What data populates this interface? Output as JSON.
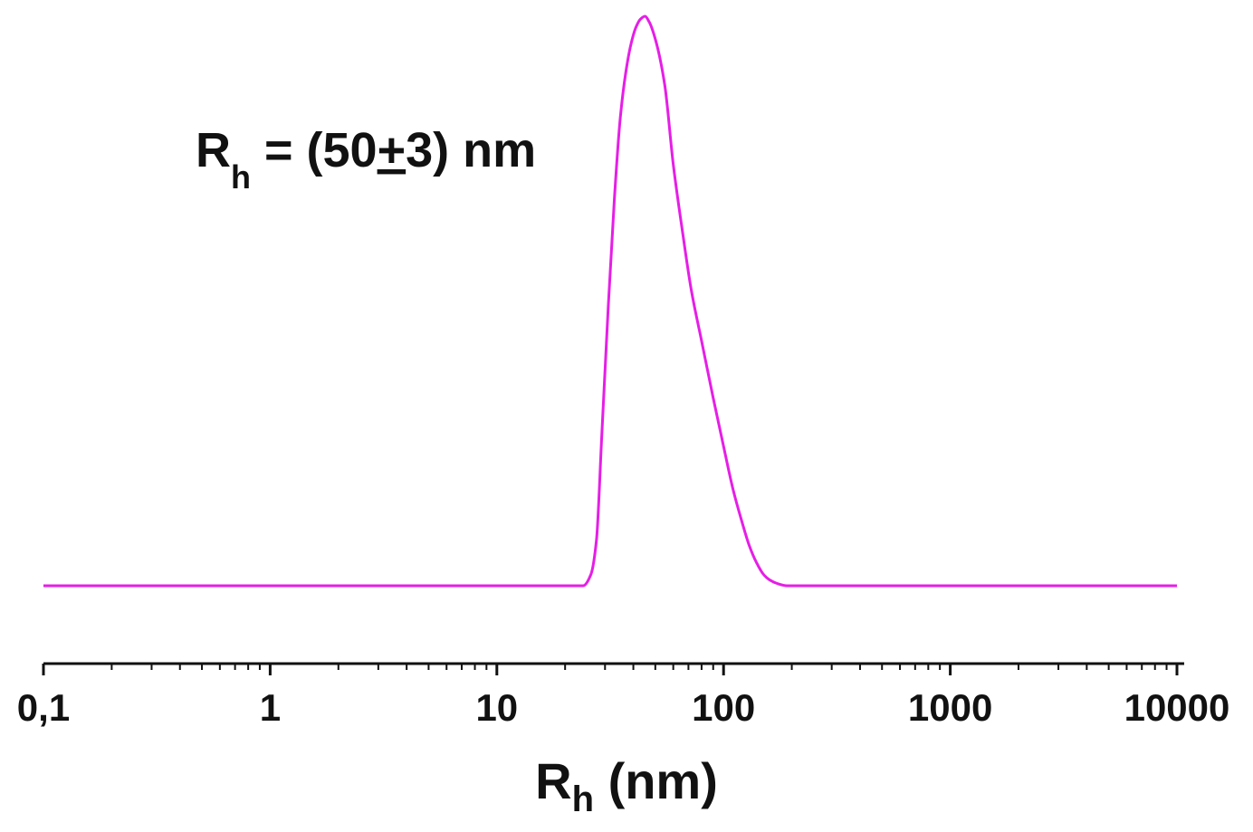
{
  "chart_data": {
    "type": "line",
    "xscale": "log",
    "xlim": [
      0.1,
      10000
    ],
    "grid": false,
    "legend": "none",
    "color": "#e61ee6",
    "x_ticks": [
      {
        "value": 0.1,
        "label": "0,1"
      },
      {
        "value": 1,
        "label": "1"
      },
      {
        "value": 10,
        "label": "10"
      },
      {
        "value": 100,
        "label": "100"
      },
      {
        "value": 1000,
        "label": "1000"
      },
      {
        "value": 10000,
        "label": "10000"
      }
    ],
    "xlabel": {
      "main": "R",
      "sub": "h",
      "rest": " (nm)"
    },
    "annotation": {
      "main": "R",
      "sub": "h",
      "pre": " = (50",
      "pm": "+",
      "post": "3) nm"
    },
    "series": [
      {
        "x": [
          0.1,
          1,
          10,
          20,
          24,
          26,
          27.5,
          29,
          31,
          33,
          35,
          37,
          39,
          41,
          43,
          45,
          47,
          50,
          55,
          60,
          66,
          72,
          80,
          90,
          100,
          110,
          120,
          130,
          140,
          150,
          160,
          175,
          190,
          210,
          300,
          1000,
          10000
        ],
        "y": [
          0,
          0,
          0,
          0,
          0,
          0.02,
          0.08,
          0.26,
          0.49,
          0.68,
          0.82,
          0.9,
          0.95,
          0.98,
          0.995,
          1.0,
          0.99,
          0.96,
          0.88,
          0.74,
          0.62,
          0.52,
          0.43,
          0.33,
          0.245,
          0.17,
          0.115,
          0.07,
          0.04,
          0.02,
          0.01,
          0.003,
          0,
          0,
          0,
          0,
          0
        ]
      }
    ]
  }
}
